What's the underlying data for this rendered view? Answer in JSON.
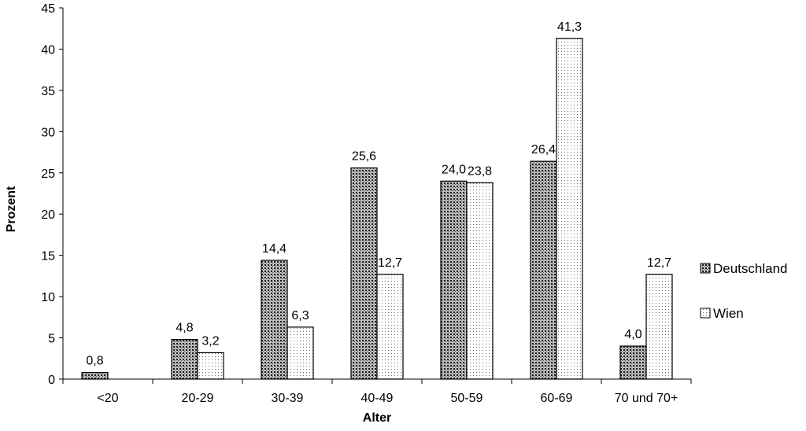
{
  "chart_data": {
    "type": "bar",
    "categories": [
      "<20",
      "20-29",
      "30-39",
      "40-49",
      "50-59",
      "60-69",
      "70 und 70+"
    ],
    "series": [
      {
        "name": "Deutschland",
        "values": [
          0.8,
          4.8,
          14.4,
          25.6,
          24.0,
          26.4,
          4.0
        ],
        "labels": [
          "0,8",
          "4,8",
          "14,4",
          "25,6",
          "24,0",
          "26,4",
          "4,0"
        ]
      },
      {
        "name": "Wien",
        "values": [
          null,
          3.2,
          6.3,
          12.7,
          23.8,
          41.3,
          12.7
        ],
        "labels": [
          null,
          "3,2",
          "6,3",
          "12,7",
          "23,8",
          "41,3",
          "12,7"
        ]
      }
    ],
    "xlabel": "Alter",
    "ylabel": "Prozent",
    "ylim": [
      0,
      45
    ],
    "yticks": [
      0,
      5,
      10,
      15,
      20,
      25,
      30,
      35,
      40,
      45
    ],
    "grid": false,
    "legend_position": "right"
  }
}
